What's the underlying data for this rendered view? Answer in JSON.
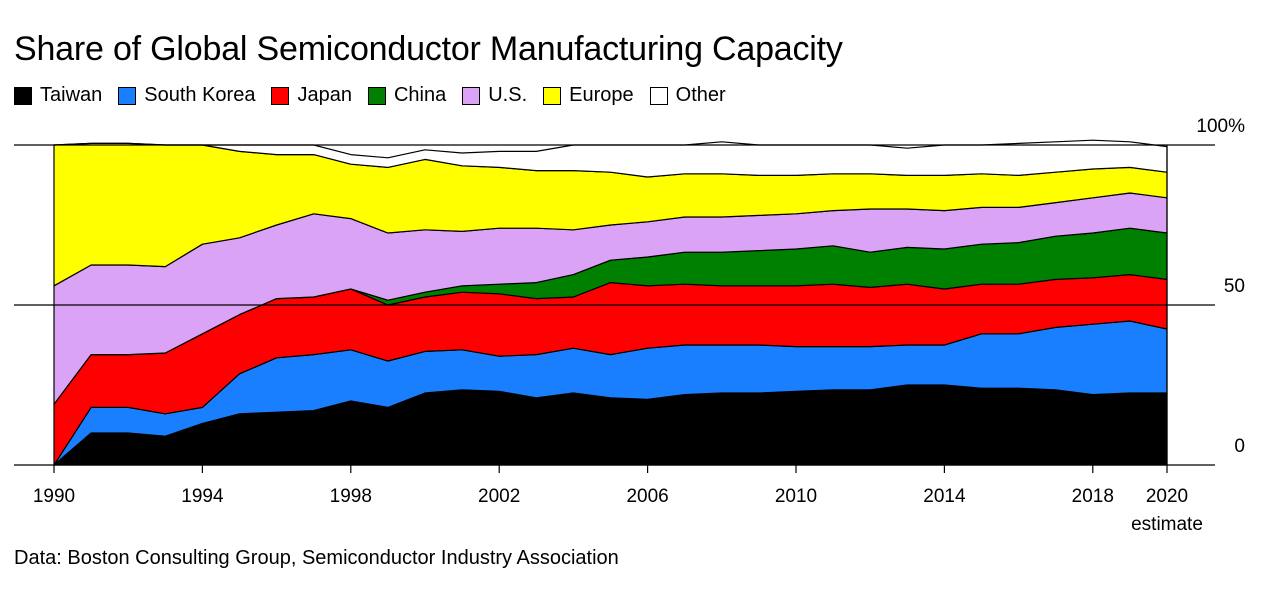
{
  "title": "Share of Global Semiconductor Manufacturing Capacity",
  "source": "Data: Boston Consulting Group, Semiconductor Industry Association",
  "legend": [
    {
      "label": "Taiwan",
      "color": "#000000"
    },
    {
      "label": "South Korea",
      "color": "#1a7fff"
    },
    {
      "label": "Japan",
      "color": "#ff0000"
    },
    {
      "label": "China",
      "color": "#008000"
    },
    {
      "label": "U.S.",
      "color": "#dba3f5"
    },
    {
      "label": "Europe",
      "color": "#ffff00"
    },
    {
      "label": "Other",
      "color": "#ffffff"
    }
  ],
  "chart_data": {
    "type": "area",
    "stacked": true,
    "x": [
      1990,
      1991,
      1992,
      1993,
      1994,
      1995,
      1996,
      1997,
      1998,
      1999,
      2000,
      2001,
      2002,
      2003,
      2004,
      2005,
      2006,
      2007,
      2008,
      2009,
      2010,
      2011,
      2012,
      2013,
      2014,
      2015,
      2016,
      2017,
      2018,
      2019,
      2020
    ],
    "xlim": [
      1990,
      2020
    ],
    "ylim": [
      0,
      100
    ],
    "x_ticks": [
      "1990",
      "1994",
      "1998",
      "2002",
      "2006",
      "2010",
      "2014",
      "2018",
      "2020"
    ],
    "x_tick_years": [
      1990,
      1994,
      1998,
      2002,
      2006,
      2010,
      2014,
      2018,
      2020
    ],
    "x_tick_note": "estimate",
    "y_ticks": [
      "0",
      "50",
      "100%"
    ],
    "y_tick_values": [
      0,
      50,
      100
    ],
    "series": [
      {
        "name": "Taiwan",
        "color": "#000000",
        "values": [
          0,
          10,
          10,
          9,
          13,
          16,
          16.5,
          17,
          20,
          18,
          22.5,
          23.5,
          23,
          21,
          22.5,
          21,
          20.5,
          22,
          22.5,
          22.5,
          23,
          23.5,
          23.5,
          25,
          25,
          24,
          24,
          23.5,
          22,
          22.5,
          22.5
        ]
      },
      {
        "name": "South Korea",
        "color": "#1a7fff",
        "values": [
          0,
          8,
          8,
          7,
          5,
          12.5,
          17,
          17.5,
          16,
          14.5,
          13,
          12.5,
          11,
          13.5,
          14,
          13.5,
          16,
          15.5,
          15,
          15,
          14,
          13.5,
          13.5,
          12.5,
          12.5,
          17,
          17,
          19.5,
          22,
          22.5,
          20
        ]
      },
      {
        "name": "Japan",
        "color": "#ff0000",
        "values": [
          19,
          16.5,
          16.5,
          19,
          23,
          18.5,
          18.5,
          18,
          19,
          17.5,
          17,
          18,
          19.5,
          17.5,
          16,
          22.5,
          19.5,
          19,
          18.5,
          18.5,
          19,
          19.5,
          18.5,
          19,
          17.5,
          15.5,
          15.5,
          15,
          14.5,
          14.5,
          15.5
        ]
      },
      {
        "name": "China",
        "color": "#008000",
        "values": [
          0,
          0,
          0,
          0,
          0,
          0,
          0,
          0,
          0,
          1.5,
          1.5,
          2,
          3,
          5,
          7,
          7,
          9,
          10,
          10.5,
          11,
          11.5,
          12,
          11,
          11.5,
          12.5,
          12.5,
          13,
          13.5,
          14,
          14.5,
          14.5
        ]
      },
      {
        "name": "U.S.",
        "color": "#dba3f5",
        "values": [
          37,
          28,
          28,
          27,
          28,
          24,
          23,
          26,
          22,
          21,
          19.5,
          17,
          17.5,
          17,
          14,
          11,
          11,
          11,
          11,
          11,
          11,
          11,
          13.5,
          12,
          12,
          11.5,
          11,
          10.5,
          11,
          11,
          11
        ]
      },
      {
        "name": "Europe",
        "color": "#ffff00",
        "values": [
          44,
          38,
          38,
          38,
          31,
          27,
          22,
          18.5,
          17,
          20.5,
          22,
          20.5,
          19,
          18,
          18.5,
          16.5,
          14,
          13.5,
          13.5,
          12.5,
          12,
          11.5,
          11,
          10.5,
          11,
          10.5,
          10,
          9.5,
          9,
          8,
          8
        ]
      },
      {
        "name": "Other",
        "color": "#ffffff",
        "values": [
          0,
          0,
          0,
          0,
          0,
          2,
          3,
          3,
          3,
          3,
          3,
          4,
          5,
          6,
          8,
          8.5,
          10,
          9,
          10,
          9.5,
          9.5,
          9,
          9,
          8.5,
          9.5,
          9,
          10,
          9.5,
          9,
          8,
          8
        ]
      }
    ]
  }
}
